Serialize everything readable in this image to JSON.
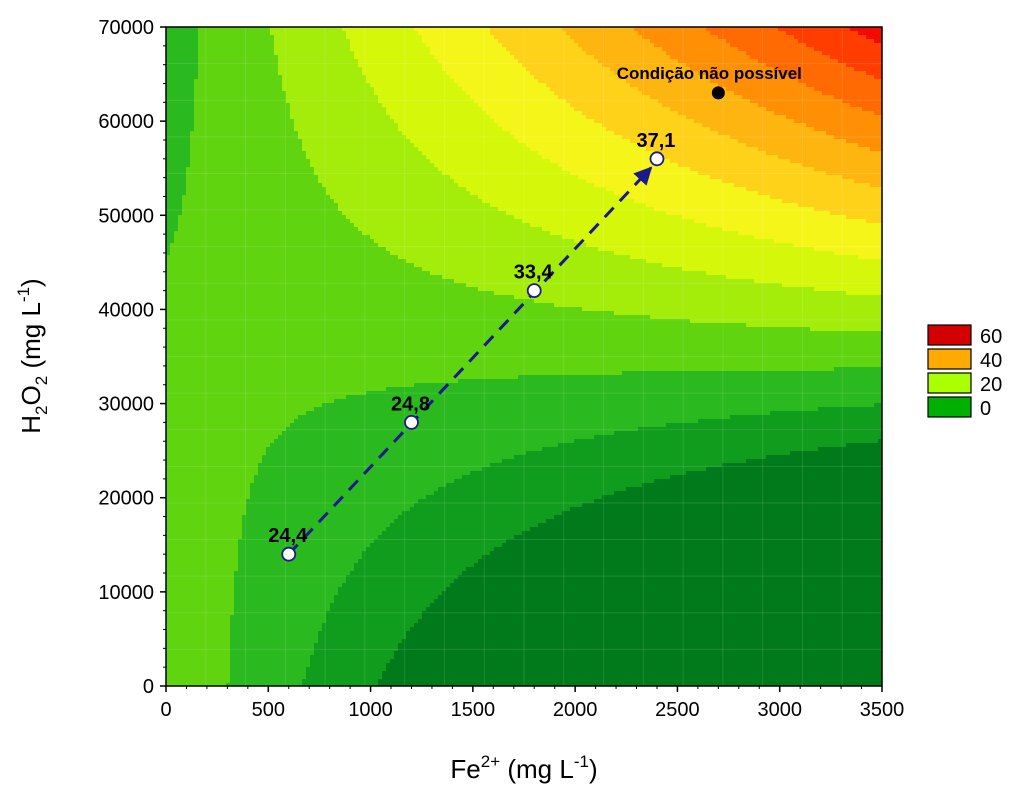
{
  "chart_data": {
    "type": "contour",
    "xlabel_base": "Fe",
    "xlabel_sup": "2+",
    "xlabel_unit": " (mg L",
    "xlabel_unit_sup": "-1",
    "xlabel_end": ")",
    "ylabel_base": "H",
    "ylabel_sub1": "2",
    "ylabel_mid": "O",
    "ylabel_sub2": "2",
    "ylabel_unit": " (mg L",
    "ylabel_unit_sup": "-1",
    "ylabel_end": ")",
    "xlim": [
      0,
      3500
    ],
    "ylim": [
      0,
      70000
    ],
    "xticks": [
      0,
      500,
      1000,
      1500,
      2000,
      2500,
      3000,
      3500
    ],
    "yticks": [
      0,
      10000,
      20000,
      30000,
      40000,
      50000,
      60000,
      70000
    ],
    "legend": [
      {
        "label": "60",
        "color": "#d40000"
      },
      {
        "label": "40",
        "color": "#ffaa00"
      },
      {
        "label": "20",
        "color": "#aaff00"
      },
      {
        "label": "0",
        "color": "#00b000"
      }
    ],
    "points": [
      {
        "x": 600,
        "y": 14000,
        "label": "24,4"
      },
      {
        "x": 1200,
        "y": 28000,
        "label": "24,8"
      },
      {
        "x": 1800,
        "y": 42000,
        "label": "33,4"
      },
      {
        "x": 2400,
        "y": 56000,
        "label": "37,1"
      }
    ],
    "annotation": {
      "x": 2700,
      "y": 63000,
      "text": "Condição não possível"
    }
  }
}
